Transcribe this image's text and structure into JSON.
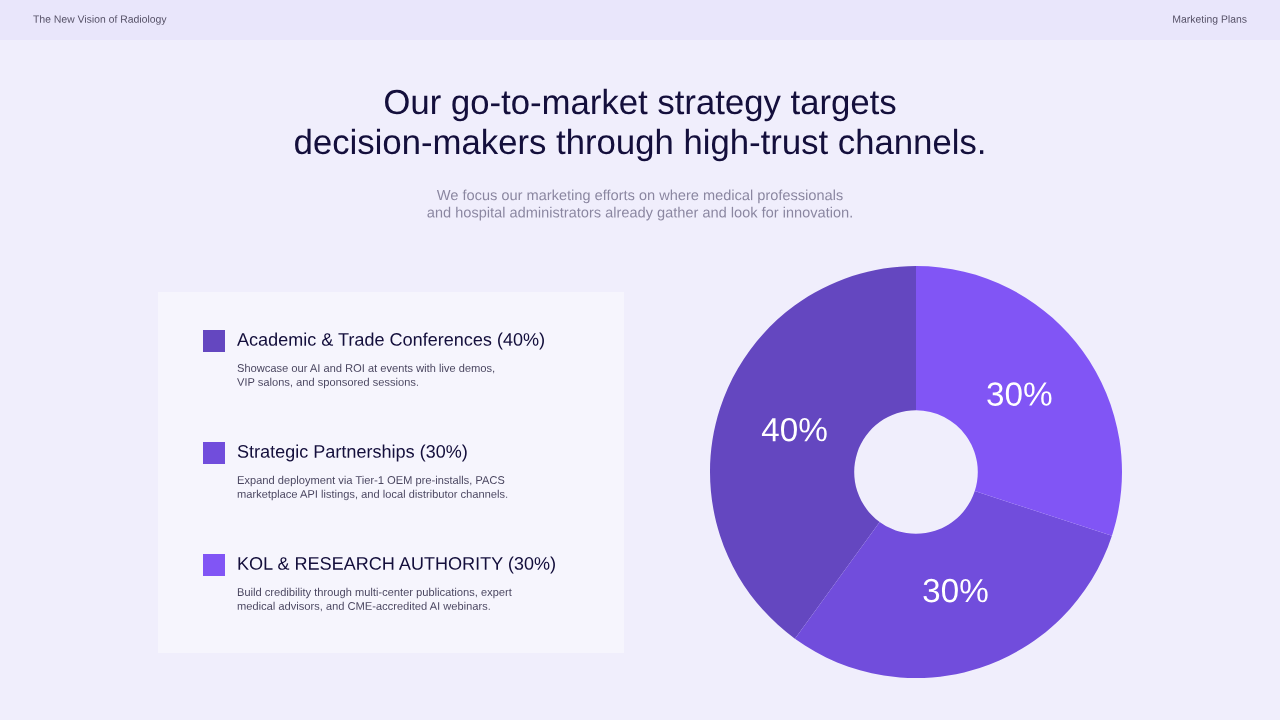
{
  "chart_data": {
    "type": "donut",
    "title": "Our go-to-market strategy targets\ndecision-makers through high-trust channels.",
    "subtitle": "We focus our marketing efforts on where medical professionals\nand hospital administrators already gather and look for innovation.",
    "categories": [
      "Academic & Trade Conferences (40%)",
      "Strategic Partnerships (30%)",
      "KOL & RESEARCH AUTHORITY (30%)"
    ],
    "values": [
      40,
      30,
      30
    ],
    "colors": [
      "#6447c0",
      "#714ddc",
      "#8155f5"
    ],
    "value_labels": [
      "40%",
      "30%",
      "30%"
    ],
    "legend": "left",
    "annotations": [
      "The New Vision of Radiology",
      "Marketing Plans",
      "Showcase our AI and ROI at events with live demos,\nVIP salons, and sponsored sessions.",
      "Expand deployment via Tier-1 OEM pre-installs, PACS\nmarketplace API listings, and local distributor channels.",
      "Build credibility through multi-center publications, expert\nmedical advisors, and CME-accredited AI webinars."
    ]
  }
}
